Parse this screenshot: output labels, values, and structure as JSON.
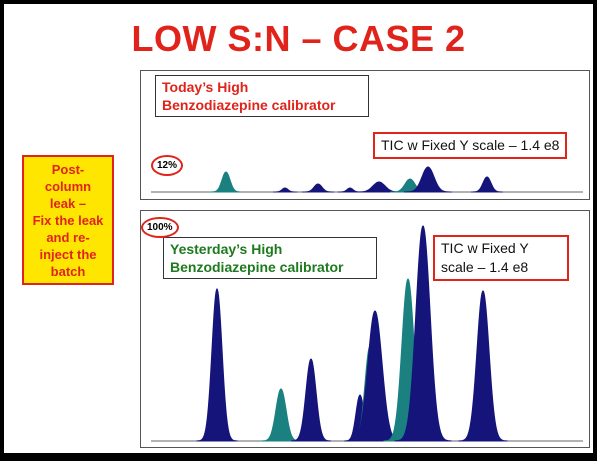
{
  "header": {
    "title": "LOW S:N – CASE 2"
  },
  "side_note": {
    "lines": [
      "Post-",
      "column",
      "leak –",
      "Fix the leak",
      "and re-",
      "inject the",
      "batch"
    ]
  },
  "top_chart": {
    "label_lines": [
      "Today’s High",
      "Benzodiazepine calibrator"
    ],
    "callout": "TIC w Fixed Y scale – 1.4 e8",
    "scale_badge": "12%"
  },
  "bottom_chart": {
    "label_lines": [
      "Yesterday’s High",
      "Benzodiazepine calibrator"
    ],
    "callout_lines": [
      "TIC w Fixed Y",
      "scale – 1.4 e8"
    ],
    "scale_badge": "100%"
  }
}
